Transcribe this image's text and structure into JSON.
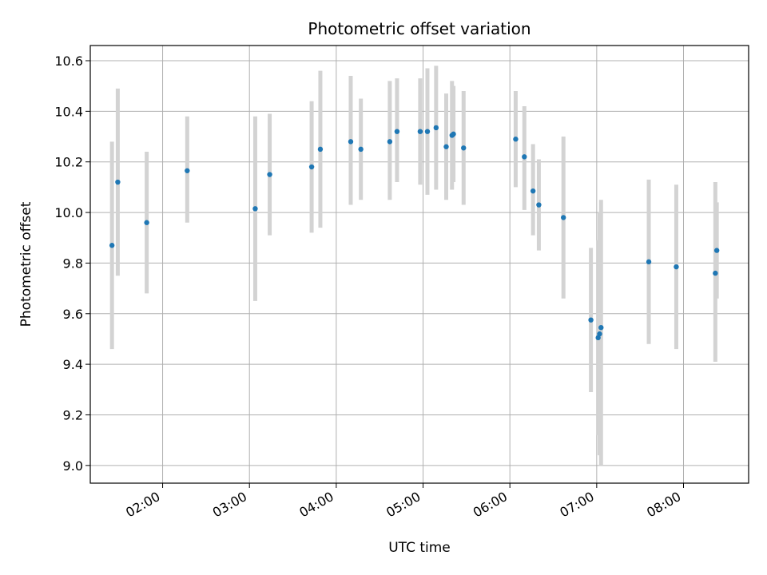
{
  "chart_data": {
    "type": "scatter",
    "title": "Photometric offset variation",
    "xlabel": "UTC time",
    "ylabel": "Photometric offset",
    "grid": true,
    "legend": "none",
    "xlim": [
      "01:10",
      "08:45"
    ],
    "ylim": [
      8.93,
      10.66
    ],
    "x_ticks": [
      "02:00",
      "03:00",
      "04:00",
      "05:00",
      "06:00",
      "07:00",
      "08:00"
    ],
    "y_ticks": [
      "9.0",
      "9.2",
      "9.4",
      "9.6",
      "9.8",
      "10.0",
      "10.2",
      "10.4",
      "10.6"
    ],
    "colors": {
      "point": "#1f77b4",
      "errorbar": "#d3d3d3",
      "grid": "#b0b0b0"
    },
    "series": [
      {
        "points": [
          {
            "x": "01:25",
            "y": 9.87,
            "yerr_low": 9.46,
            "yerr_high": 10.28
          },
          {
            "x": "01:29",
            "y": 10.12,
            "yerr_low": 9.75,
            "yerr_high": 10.49
          },
          {
            "x": "01:49",
            "y": 9.96,
            "yerr_low": 9.68,
            "yerr_high": 10.24
          },
          {
            "x": "02:17",
            "y": 10.165,
            "yerr_low": 9.96,
            "yerr_high": 10.38
          },
          {
            "x": "03:04",
            "y": 10.015,
            "yerr_low": 9.65,
            "yerr_high": 10.38
          },
          {
            "x": "03:14",
            "y": 10.15,
            "yerr_low": 9.91,
            "yerr_high": 10.39
          },
          {
            "x": "03:43",
            "y": 10.18,
            "yerr_low": 9.92,
            "yerr_high": 10.44
          },
          {
            "x": "03:49",
            "y": 10.25,
            "yerr_low": 9.94,
            "yerr_high": 10.56
          },
          {
            "x": "04:10",
            "y": 10.28,
            "yerr_low": 10.03,
            "yerr_high": 10.54
          },
          {
            "x": "04:17",
            "y": 10.25,
            "yerr_low": 10.05,
            "yerr_high": 10.45
          },
          {
            "x": "04:37",
            "y": 10.28,
            "yerr_low": 10.05,
            "yerr_high": 10.52
          },
          {
            "x": "04:42",
            "y": 10.32,
            "yerr_low": 10.12,
            "yerr_high": 10.53
          },
          {
            "x": "04:58",
            "y": 10.32,
            "yerr_low": 10.11,
            "yerr_high": 10.53
          },
          {
            "x": "05:03",
            "y": 10.32,
            "yerr_low": 10.07,
            "yerr_high": 10.57
          },
          {
            "x": "05:09",
            "y": 10.335,
            "yerr_low": 10.09,
            "yerr_high": 10.58
          },
          {
            "x": "05:16",
            "y": 10.26,
            "yerr_low": 10.05,
            "yerr_high": 10.47
          },
          {
            "x": "05:20",
            "y": 10.305,
            "yerr_low": 10.09,
            "yerr_high": 10.52
          },
          {
            "x": "05:21",
            "y": 10.31,
            "yerr_low": 10.12,
            "yerr_high": 10.5
          },
          {
            "x": "05:28",
            "y": 10.255,
            "yerr_low": 10.03,
            "yerr_high": 10.48
          },
          {
            "x": "06:04",
            "y": 10.29,
            "yerr_low": 10.1,
            "yerr_high": 10.48
          },
          {
            "x": "06:10",
            "y": 10.22,
            "yerr_low": 10.01,
            "yerr_high": 10.42
          },
          {
            "x": "06:16",
            "y": 10.085,
            "yerr_low": 9.91,
            "yerr_high": 10.27
          },
          {
            "x": "06:20",
            "y": 10.03,
            "yerr_low": 9.85,
            "yerr_high": 10.21
          },
          {
            "x": "06:37",
            "y": 9.98,
            "yerr_low": 9.66,
            "yerr_high": 10.3
          },
          {
            "x": "06:56",
            "y": 9.575,
            "yerr_low": 9.29,
            "yerr_high": 9.86
          },
          {
            "x": "07:01",
            "y": 9.505,
            "yerr_low": 9.12,
            "yerr_high": 9.89
          },
          {
            "x": "07:02",
            "y": 9.52,
            "yerr_low": 9.04,
            "yerr_high": 10.0
          },
          {
            "x": "07:03",
            "y": 9.545,
            "yerr_low": 9.0,
            "yerr_high": 10.05
          },
          {
            "x": "07:36",
            "y": 9.805,
            "yerr_low": 9.48,
            "yerr_high": 10.13
          },
          {
            "x": "07:55",
            "y": 9.785,
            "yerr_low": 9.46,
            "yerr_high": 10.11
          },
          {
            "x": "08:22",
            "y": 9.76,
            "yerr_low": 9.41,
            "yerr_high": 10.12
          },
          {
            "x": "08:23",
            "y": 9.85,
            "yerr_low": 9.66,
            "yerr_high": 10.04
          }
        ]
      }
    ]
  }
}
